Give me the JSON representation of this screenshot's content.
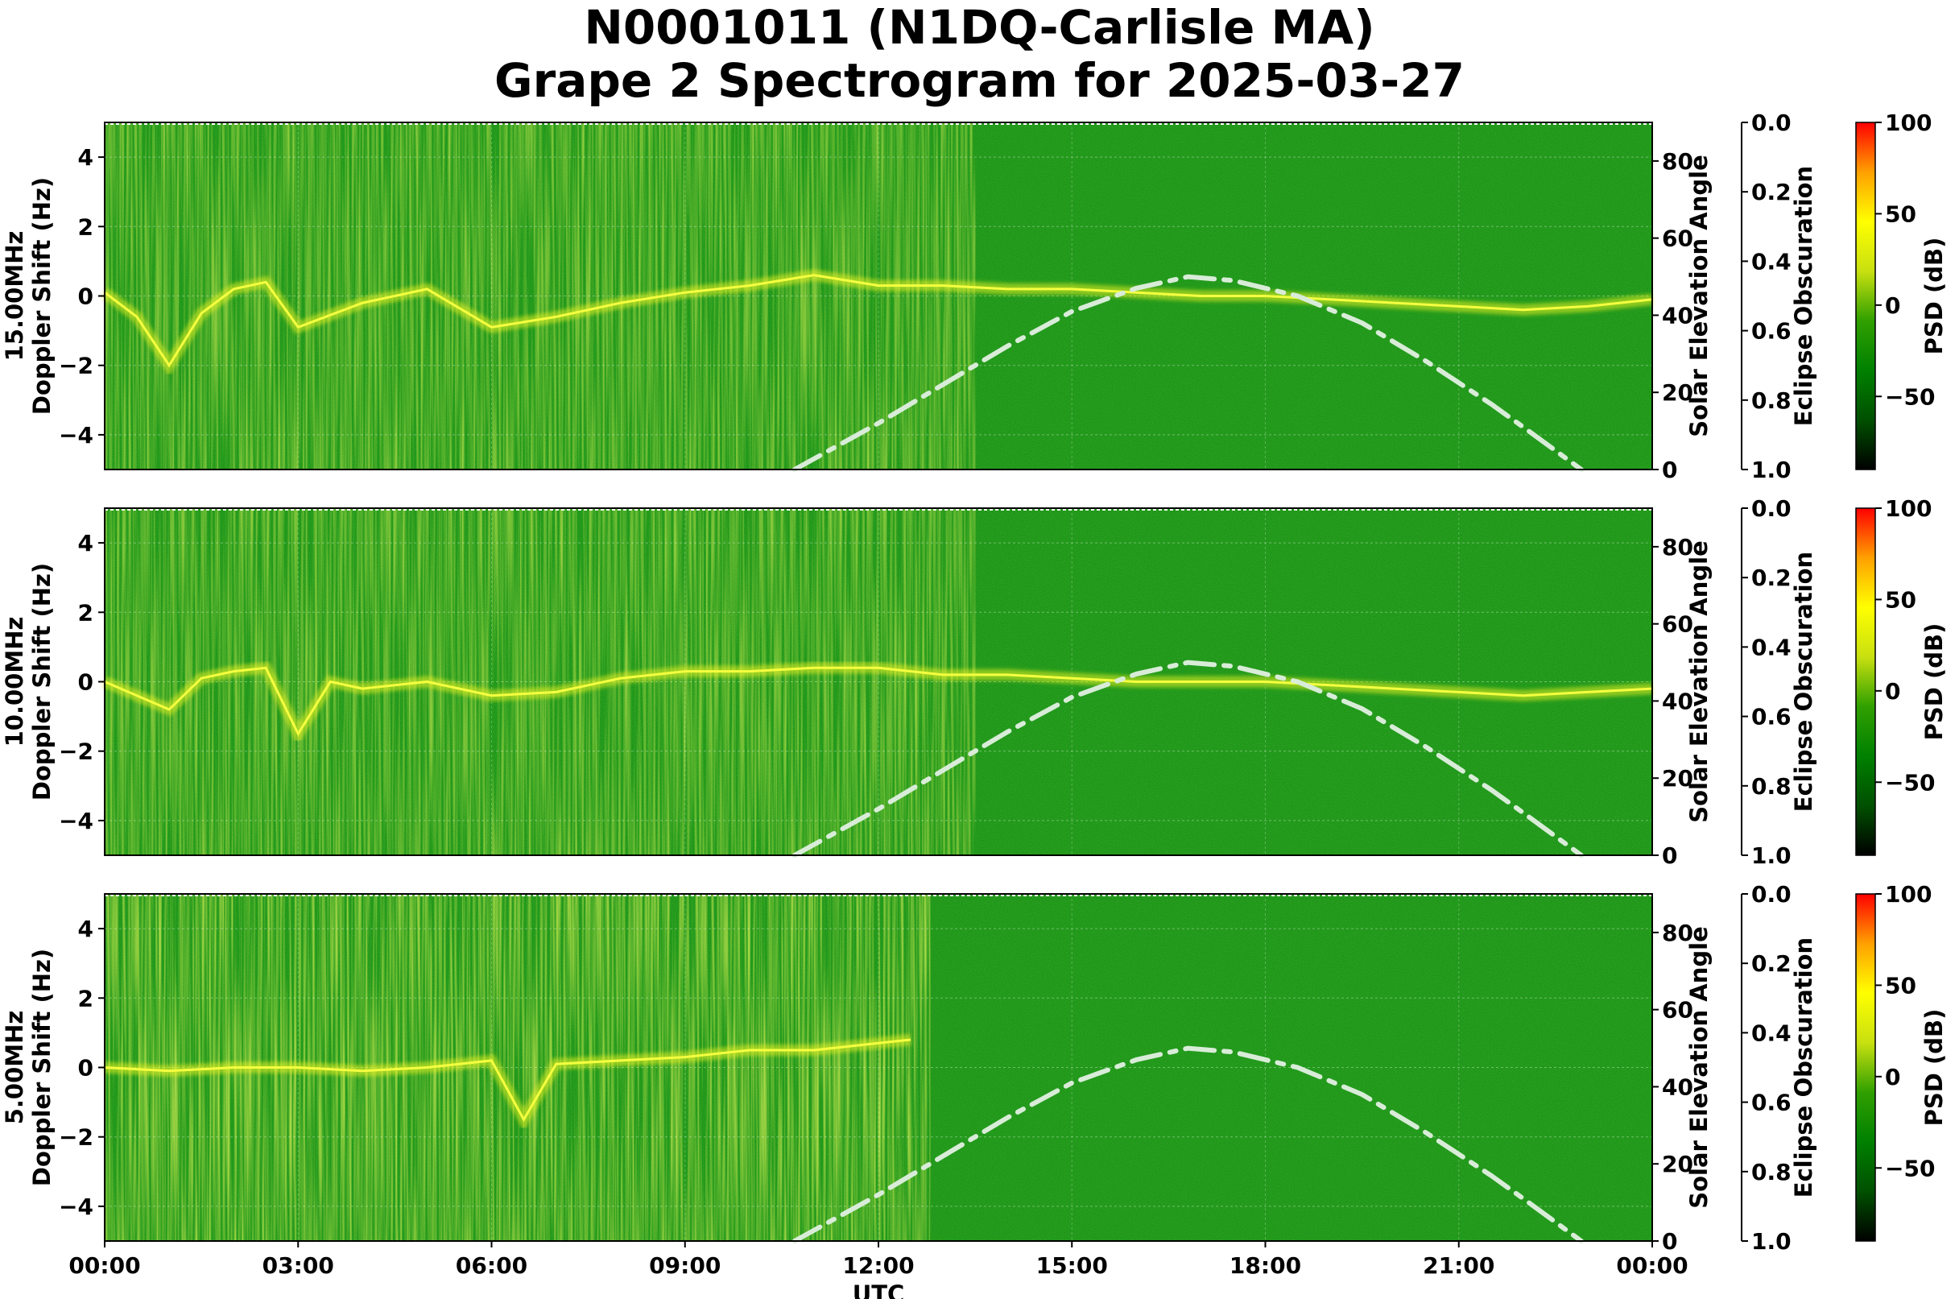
{
  "figure": {
    "title_line1": "N0001011 (N1DQ-Carlisle MA)",
    "title_line2": "Grape 2 Spectrogram for 2025-03-27",
    "xlabel": "UTC"
  },
  "colors": {
    "background_green": "#0f8a0f",
    "signal_yellow": "#e8f020",
    "solar_curve": "#d8ecd8",
    "colorbar_stops": [
      "#000000",
      "#005000",
      "#008000",
      "#30a000",
      "#c8e010",
      "#ffff00",
      "#ffa000",
      "#ff0000"
    ]
  },
  "chart_data": [
    {
      "type": "heatmap",
      "panel": "15.00MHz",
      "ylabel": "15.00MHz\nDoppler Shift (Hz)",
      "ylabel_line1": "15.00MHz",
      "ylabel_line2": "Doppler Shift (Hz)",
      "ylim": [
        -5,
        5
      ],
      "yticks": [
        -4,
        -2,
        0,
        2,
        4
      ],
      "yticklabels": [
        "−4",
        "−2",
        "0",
        "2",
        "4"
      ],
      "secondary_y1": {
        "label": "Solar Elevation Angle",
        "lim": [
          0,
          90
        ],
        "ticks": [
          0,
          20,
          40,
          60,
          80
        ]
      },
      "secondary_y2": {
        "label": "Eclipse Obscuration",
        "lim": [
          1.0,
          0.0
        ],
        "ticks": [
          "0.0",
          "0.2",
          "0.4",
          "0.6",
          "0.8",
          "1.0"
        ]
      },
      "colorbar": {
        "label": "PSD (dB)",
        "ticks": [
          -50,
          0,
          50,
          100
        ],
        "ticklabels": [
          "−50",
          "0",
          "50",
          "100"
        ],
        "lim": [
          -90,
          100
        ]
      },
      "doppler_trace_hz": [
        [
          0.0,
          0.1
        ],
        [
          0.5,
          -0.6
        ],
        [
          1.0,
          -2.0
        ],
        [
          1.5,
          -0.5
        ],
        [
          2.0,
          0.2
        ],
        [
          2.5,
          0.4
        ],
        [
          3.0,
          -0.9
        ],
        [
          4.0,
          -0.2
        ],
        [
          5.0,
          0.2
        ],
        [
          6.0,
          -0.9
        ],
        [
          7.0,
          -0.6
        ],
        [
          8.0,
          -0.2
        ],
        [
          9.0,
          0.1
        ],
        [
          10.0,
          0.3
        ],
        [
          11.0,
          0.6
        ],
        [
          12.0,
          0.3
        ],
        [
          13.0,
          0.3
        ],
        [
          14.0,
          0.2
        ],
        [
          15.0,
          0.2
        ],
        [
          16.0,
          0.1
        ],
        [
          17.0,
          0.0
        ],
        [
          18.0,
          0.0
        ],
        [
          19.0,
          -0.1
        ],
        [
          20.0,
          -0.2
        ],
        [
          21.0,
          -0.3
        ],
        [
          22.0,
          -0.4
        ],
        [
          23.0,
          -0.3
        ],
        [
          24.0,
          -0.1
        ]
      ],
      "solar_elevation_deg": [
        [
          10.7,
          0
        ],
        [
          12.0,
          12
        ],
        [
          13.0,
          22
        ],
        [
          14.0,
          32
        ],
        [
          15.0,
          41
        ],
        [
          16.0,
          47
        ],
        [
          16.8,
          50
        ],
        [
          17.5,
          49
        ],
        [
          18.5,
          45
        ],
        [
          19.5,
          38
        ],
        [
          20.5,
          28
        ],
        [
          21.5,
          17
        ],
        [
          22.0,
          11
        ],
        [
          22.9,
          0
        ]
      ]
    },
    {
      "type": "heatmap",
      "panel": "10.00MHz",
      "ylabel": "10.00MHz\nDoppler Shift (Hz)",
      "ylabel_line1": "10.00MHz",
      "ylabel_line2": "Doppler Shift (Hz)",
      "ylim": [
        -5,
        5
      ],
      "yticks": [
        -4,
        -2,
        0,
        2,
        4
      ],
      "yticklabels": [
        "−4",
        "−2",
        "0",
        "2",
        "4"
      ],
      "secondary_y1": {
        "label": "Solar Elevation Angle",
        "lim": [
          0,
          90
        ],
        "ticks": [
          0,
          20,
          40,
          60,
          80
        ]
      },
      "secondary_y2": {
        "label": "Eclipse Obscuration",
        "lim": [
          1.0,
          0.0
        ],
        "ticks": [
          "0.0",
          "0.2",
          "0.4",
          "0.6",
          "0.8",
          "1.0"
        ]
      },
      "colorbar": {
        "label": "PSD (dB)",
        "ticks": [
          -50,
          0,
          50,
          100
        ],
        "ticklabels": [
          "−50",
          "0",
          "50",
          "100"
        ],
        "lim": [
          -90,
          100
        ]
      },
      "doppler_trace_hz": [
        [
          0.0,
          0.0
        ],
        [
          0.5,
          -0.4
        ],
        [
          1.0,
          -0.8
        ],
        [
          1.5,
          0.1
        ],
        [
          2.0,
          0.3
        ],
        [
          2.5,
          0.4
        ],
        [
          3.0,
          -1.5
        ],
        [
          3.5,
          0.0
        ],
        [
          4.0,
          -0.2
        ],
        [
          5.0,
          0.0
        ],
        [
          6.0,
          -0.4
        ],
        [
          7.0,
          -0.3
        ],
        [
          8.0,
          0.1
        ],
        [
          9.0,
          0.3
        ],
        [
          10.0,
          0.3
        ],
        [
          11.0,
          0.4
        ],
        [
          12.0,
          0.4
        ],
        [
          13.0,
          0.2
        ],
        [
          14.0,
          0.2
        ],
        [
          15.0,
          0.1
        ],
        [
          16.0,
          0.0
        ],
        [
          17.0,
          0.0
        ],
        [
          18.0,
          0.0
        ],
        [
          19.0,
          -0.1
        ],
        [
          20.0,
          -0.2
        ],
        [
          21.0,
          -0.3
        ],
        [
          22.0,
          -0.4
        ],
        [
          23.0,
          -0.3
        ],
        [
          24.0,
          -0.2
        ]
      ],
      "solar_elevation_deg": [
        [
          10.7,
          0
        ],
        [
          12.0,
          12
        ],
        [
          13.0,
          22
        ],
        [
          14.0,
          32
        ],
        [
          15.0,
          41
        ],
        [
          16.0,
          47
        ],
        [
          16.8,
          50
        ],
        [
          17.5,
          49
        ],
        [
          18.5,
          45
        ],
        [
          19.5,
          38
        ],
        [
          20.5,
          28
        ],
        [
          21.5,
          17
        ],
        [
          22.0,
          11
        ],
        [
          22.9,
          0
        ]
      ]
    },
    {
      "type": "heatmap",
      "panel": "5.00MHz",
      "ylabel": "5.00MHz\nDoppler Shift (Hz)",
      "ylabel_line1": "5.00MHz",
      "ylabel_line2": "Doppler Shift (Hz)",
      "ylim": [
        -5,
        5
      ],
      "yticks": [
        -4,
        -2,
        0,
        2,
        4
      ],
      "yticklabels": [
        "−4",
        "−2",
        "0",
        "2",
        "4"
      ],
      "xticks": [
        0,
        3,
        6,
        9,
        12,
        15,
        18,
        21,
        24
      ],
      "xticklabels": [
        "00:00",
        "03:00",
        "06:00",
        "09:00",
        "12:00",
        "15:00",
        "18:00",
        "21:00",
        "00:00"
      ],
      "secondary_y1": {
        "label": "Solar Elevation Angle",
        "lim": [
          0,
          90
        ],
        "ticks": [
          0,
          20,
          40,
          60,
          80
        ]
      },
      "secondary_y2": {
        "label": "Eclipse Obscuration",
        "lim": [
          1.0,
          0.0
        ],
        "ticks": [
          "0.0",
          "0.2",
          "0.4",
          "0.6",
          "0.8",
          "1.0"
        ]
      },
      "colorbar": {
        "label": "PSD (dB)",
        "ticks": [
          -50,
          0,
          50,
          100
        ],
        "ticklabels": [
          "−50",
          "0",
          "50",
          "100"
        ],
        "lim": [
          -90,
          100
        ]
      },
      "doppler_trace_hz": [
        [
          0.0,
          0.0
        ],
        [
          1.0,
          -0.1
        ],
        [
          2.0,
          0.0
        ],
        [
          3.0,
          0.0
        ],
        [
          4.0,
          -0.1
        ],
        [
          5.0,
          0.0
        ],
        [
          6.0,
          0.2
        ],
        [
          6.5,
          -1.5
        ],
        [
          7.0,
          0.1
        ],
        [
          8.0,
          0.2
        ],
        [
          9.0,
          0.3
        ],
        [
          10.0,
          0.5
        ],
        [
          11.0,
          0.5
        ],
        [
          12.0,
          0.7
        ],
        [
          12.5,
          0.8
        ]
      ],
      "solar_elevation_deg": [
        [
          10.7,
          0
        ],
        [
          12.0,
          12
        ],
        [
          13.0,
          22
        ],
        [
          14.0,
          32
        ],
        [
          15.0,
          41
        ],
        [
          16.0,
          47
        ],
        [
          16.8,
          50
        ],
        [
          17.5,
          49
        ],
        [
          18.5,
          45
        ],
        [
          19.5,
          38
        ],
        [
          20.5,
          28
        ],
        [
          21.5,
          17
        ],
        [
          22.0,
          11
        ],
        [
          22.9,
          0
        ]
      ]
    }
  ]
}
